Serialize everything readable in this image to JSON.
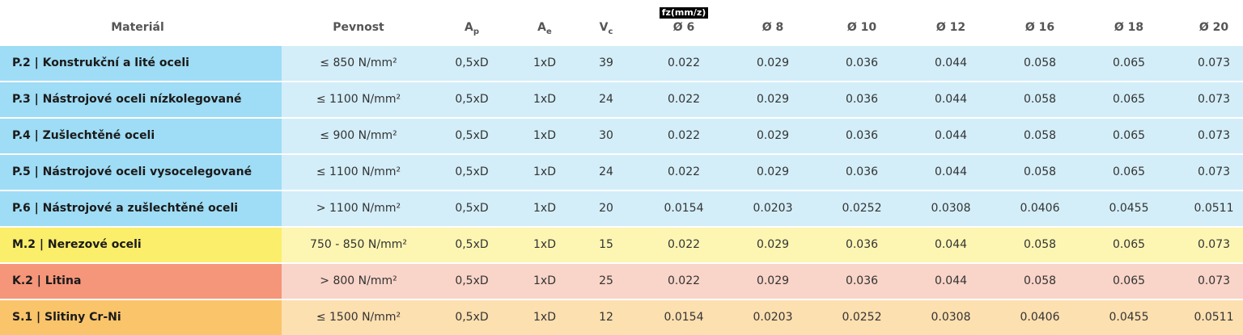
{
  "table": {
    "fz_label": "fz(mm/z)",
    "header": [
      {
        "text": "Materiál"
      },
      {
        "text": "Pevnost"
      },
      {
        "text": "A",
        "sub": "p"
      },
      {
        "text": "A",
        "sub": "e"
      },
      {
        "text": "V",
        "sub": "c"
      },
      {
        "text": "Ø 6"
      },
      {
        "text": "Ø 8"
      },
      {
        "text": "Ø 10"
      },
      {
        "text": "Ø 12"
      },
      {
        "text": "Ø 16"
      },
      {
        "text": "Ø 18"
      },
      {
        "text": "Ø 20"
      }
    ],
    "rows": [
      [
        "P.2 | Konstrukční a lité oceli",
        "≤ 850 N/mm²",
        "0,5xD",
        "1xD",
        "39",
        "0.022",
        "0.029",
        "0.036",
        "0.044",
        "0.058",
        "0.065",
        "0.073"
      ],
      [
        "P.3 | Nástrojové oceli nízkolegované",
        "≤ 1100 N/mm²",
        "0,5xD",
        "1xD",
        "24",
        "0.022",
        "0.029",
        "0.036",
        "0.044",
        "0.058",
        "0.065",
        "0.073"
      ],
      [
        "P.4 | Zušlechtěné oceli",
        "≤ 900 N/mm²",
        "0,5xD",
        "1xD",
        "30",
        "0.022",
        "0.029",
        "0.036",
        "0.044",
        "0.058",
        "0.065",
        "0.073"
      ],
      [
        "P.5 | Nástrojové oceli vysocelegované",
        "≤ 1100 N/mm²",
        "0,5xD",
        "1xD",
        "24",
        "0.022",
        "0.029",
        "0.036",
        "0.044",
        "0.058",
        "0.065",
        "0.073"
      ],
      [
        "P.6 | Nástrojové a zušlechtěné oceli",
        "> 1100 N/mm²",
        "0,5xD",
        "1xD",
        "20",
        "0.0154",
        "0.0203",
        "0.0252",
        "0.0308",
        "0.0406",
        "0.0455",
        "0.0511"
      ],
      [
        "M.2 | Nerezové oceli",
        "750 - 850 N/mm²",
        "0,5xD",
        "1xD",
        "15",
        "0.022",
        "0.029",
        "0.036",
        "0.044",
        "0.058",
        "0.065",
        "0.073"
      ],
      [
        "K.2 | Litina",
        "> 800 N/mm²",
        "0,5xD",
        "1xD",
        "25",
        "0.022",
        "0.029",
        "0.036",
        "0.044",
        "0.058",
        "0.065",
        "0.073"
      ],
      [
        "S.1 | Slitiny Cr-Ni",
        "≤ 1500 N/mm²",
        "0,5xD",
        "1xD",
        "12",
        "0.0154",
        "0.0203",
        "0.0252",
        "0.0308",
        "0.0406",
        "0.0455",
        "0.0511"
      ]
    ]
  }
}
